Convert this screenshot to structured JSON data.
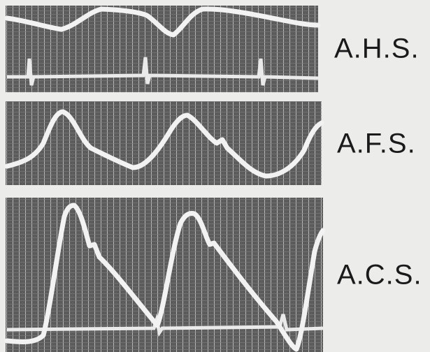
{
  "labels": [
    "A.H.S.",
    "A.F.S.",
    "A.C.S."
  ]
}
